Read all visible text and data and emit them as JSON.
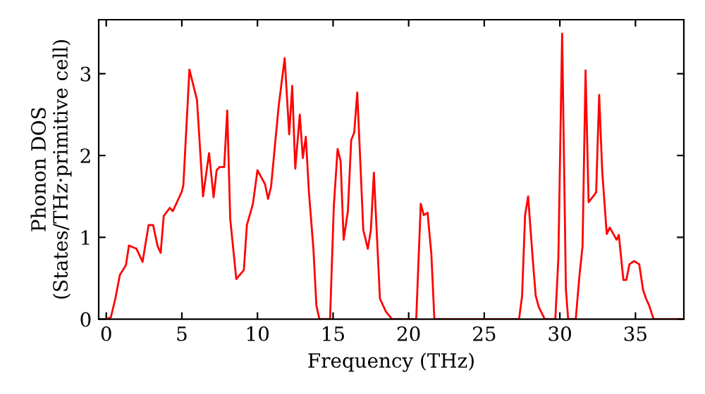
{
  "chart_data": {
    "type": "line",
    "xlabel": "Frequency (THz)",
    "ylabel": "Phonon DOS\n(States/THz·primitive cell)",
    "xlim": [
      -0.5,
      38.2
    ],
    "ylim": [
      0,
      3.66
    ],
    "xticks": [
      0,
      5,
      10,
      15,
      20,
      25,
      30,
      35
    ],
    "yticks": [
      0,
      1,
      2,
      3
    ],
    "grid": false,
    "legend": false,
    "series": [
      {
        "color": "#ff0000",
        "x": [
          0,
          0.3,
          0.6,
          0.9,
          1.3,
          1.5,
          2.0,
          2.4,
          2.8,
          3.1,
          3.4,
          3.6,
          3.8,
          4.2,
          4.4,
          5.0,
          5.1,
          5.5,
          6.0,
          6.4,
          6.8,
          7.1,
          7.3,
          7.5,
          7.8,
          8.0,
          8.2,
          8.6,
          9.1,
          9.3,
          9.7,
          10.0,
          10.5,
          10.7,
          10.9,
          11.4,
          11.8,
          12.1,
          12.3,
          12.5,
          12.8,
          13.0,
          13.2,
          13.4,
          13.7,
          13.9,
          14.1,
          14.8,
          15.05,
          15.3,
          15.5,
          15.7,
          15.98,
          16.2,
          16.4,
          16.6,
          17.0,
          17.3,
          17.5,
          17.7,
          18.1,
          18.5,
          18.9,
          20.5,
          20.8,
          21.0,
          21.25,
          21.5,
          21.7,
          27.3,
          27.5,
          27.7,
          27.9,
          28.2,
          28.4,
          28.6,
          29.0,
          29.7,
          29.9,
          30.15,
          30.4,
          30.55,
          31.05,
          31.3,
          31.5,
          31.7,
          31.9,
          32.2,
          32.4,
          32.6,
          32.8,
          33.1,
          33.3,
          33.75,
          33.9,
          34.2,
          34.4,
          34.6,
          34.9,
          35.25,
          35.5,
          35.7,
          35.9,
          36.2,
          38.2
        ],
        "values": [
          0,
          0.02,
          0.25,
          0.54,
          0.66,
          0.9,
          0.86,
          0.7,
          1.15,
          1.15,
          0.89,
          0.81,
          1.26,
          1.36,
          1.32,
          1.56,
          1.64,
          3.05,
          2.68,
          1.5,
          2.03,
          1.49,
          1.82,
          1.86,
          1.86,
          2.55,
          1.22,
          0.49,
          0.6,
          1.15,
          1.41,
          1.82,
          1.65,
          1.47,
          1.62,
          2.6,
          3.19,
          2.26,
          2.85,
          1.84,
          2.5,
          1.97,
          2.23,
          1.56,
          0.86,
          0.16,
          0,
          0,
          1.38,
          2.08,
          1.93,
          0.97,
          1.32,
          2.19,
          2.28,
          2.77,
          1.09,
          0.86,
          1.09,
          1.79,
          0.25,
          0.09,
          0,
          0,
          1.41,
          1.27,
          1.3,
          0.8,
          0,
          0,
          0.28,
          1.27,
          1.5,
          0.75,
          0.29,
          0.15,
          0,
          0,
          0.74,
          3.49,
          0.36,
          0,
          0,
          0.54,
          0.89,
          3.04,
          1.43,
          1.5,
          1.55,
          2.74,
          1.81,
          1.04,
          1.12,
          0.97,
          1.03,
          0.48,
          0.48,
          0.67,
          0.71,
          0.67,
          0.36,
          0.25,
          0.17,
          0,
          0
        ]
      }
    ]
  }
}
